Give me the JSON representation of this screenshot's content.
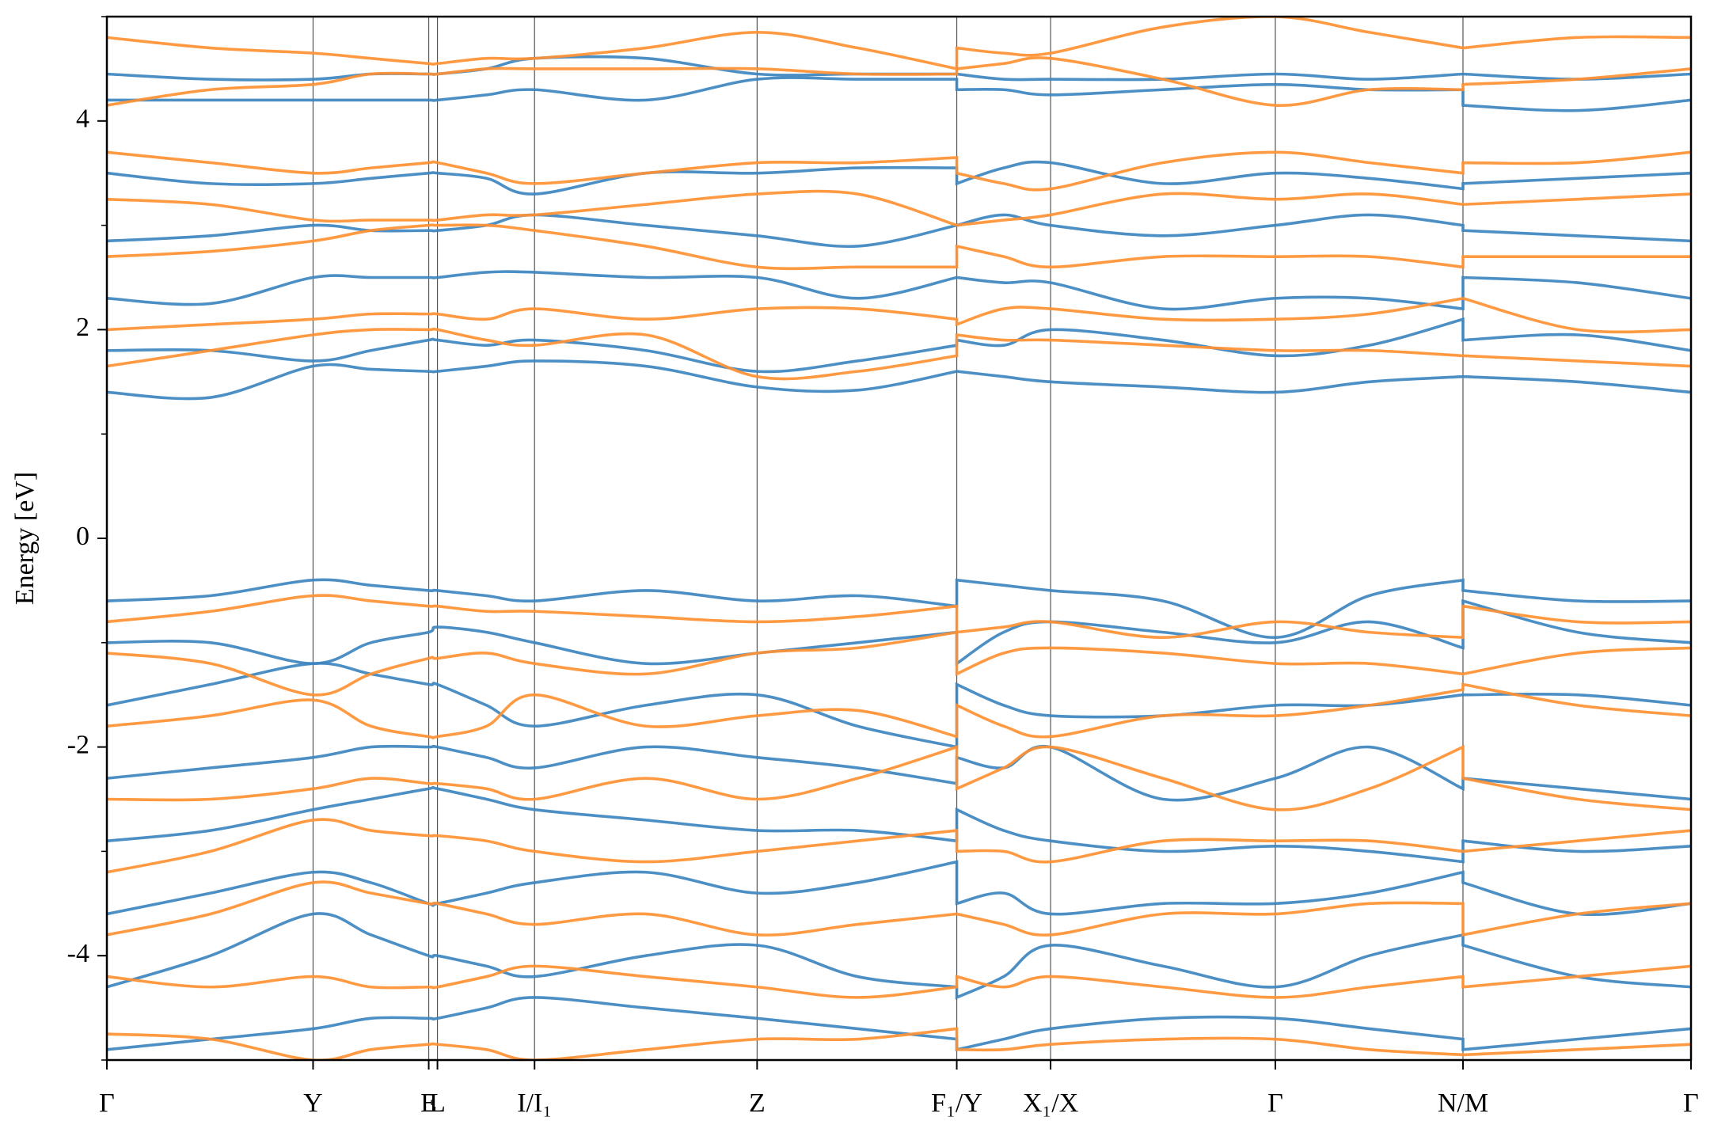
{
  "chart_data": {
    "type": "line",
    "y_label": "Energy [eV]",
    "xlim": [
      0,
      1.452
    ],
    "ylim": [
      -5,
      5
    ],
    "yticks": [
      -4,
      -2,
      0,
      2,
      4
    ],
    "yminorticks": [
      -5,
      -3,
      -1,
      1,
      3,
      5
    ],
    "xticks": [
      {
        "value": 0,
        "label": "Γ"
      },
      {
        "value": 0.189,
        "label": "Y"
      },
      {
        "value": 0.295,
        "label": "E"
      },
      {
        "value": 0.303,
        "label": "L"
      },
      {
        "value": 0.392,
        "label": "I/I₁"
      },
      {
        "value": 0.596,
        "label": "Z"
      },
      {
        "value": 0.779,
        "label": "F₁/Y"
      },
      {
        "value": 0.865,
        "label": "X₁/X"
      },
      {
        "value": 1.071,
        "label": "Γ"
      },
      {
        "value": 1.243,
        "label": "N/M"
      },
      {
        "value": 1.452,
        "label": "Γ"
      }
    ],
    "grid": true,
    "x": [
      0,
      0.095,
      0.189,
      0.242,
      0.295,
      0.303,
      0.348,
      0.392,
      0.494,
      0.596,
      0.688,
      0.779,
      0.779,
      0.822,
      0.865,
      0.968,
      1.071,
      1.157,
      1.243,
      1.243,
      1.348,
      1.452
    ],
    "series": [
      {
        "color": "#3d85c0",
        "values": [
          -0.6,
          -0.55,
          -0.4,
          -0.45,
          -0.5,
          -0.5,
          -0.55,
          -0.6,
          -0.5,
          -0.6,
          -0.55,
          -0.65,
          -0.4,
          -0.45,
          -0.5,
          -0.6,
          -0.95,
          -0.55,
          -0.4,
          -0.5,
          -0.6,
          -0.6
        ]
      },
      {
        "color": "#3d85c0",
        "values": [
          -1.0,
          -1.0,
          -1.2,
          -1.0,
          -0.9,
          -0.85,
          -0.9,
          -1.0,
          -1.2,
          -1.1,
          -1.0,
          -0.9,
          -1.2,
          -0.9,
          -0.8,
          -0.9,
          -1.0,
          -0.8,
          -1.05,
          -0.6,
          -0.9,
          -1.0
        ]
      },
      {
        "color": "#3d85c0",
        "values": [
          -1.6,
          -1.4,
          -1.2,
          -1.3,
          -1.4,
          -1.4,
          -1.6,
          -1.8,
          -1.6,
          -1.5,
          -1.8,
          -2.0,
          -1.4,
          -1.6,
          -1.7,
          -1.7,
          -1.6,
          -1.6,
          -1.5,
          -1.5,
          -1.5,
          -1.6
        ]
      },
      {
        "color": "#3d85c0",
        "values": [
          -2.3,
          -2.2,
          -2.1,
          -2.0,
          -2.0,
          -2.0,
          -2.1,
          -2.2,
          -2.0,
          -2.1,
          -2.2,
          -2.35,
          -2.1,
          -2.2,
          -2.0,
          -2.5,
          -2.3,
          -2.0,
          -2.4,
          -2.3,
          -2.4,
          -2.5
        ]
      },
      {
        "color": "#3d85c0",
        "values": [
          -2.9,
          -2.8,
          -2.6,
          -2.5,
          -2.4,
          -2.4,
          -2.5,
          -2.6,
          -2.7,
          -2.8,
          -2.8,
          -2.9,
          -2.6,
          -2.8,
          -2.9,
          -3.0,
          -2.95,
          -3.0,
          -3.1,
          -2.9,
          -3.0,
          -2.95
        ]
      },
      {
        "color": "#3d85c0",
        "values": [
          -3.6,
          -3.4,
          -3.2,
          -3.3,
          -3.5,
          -3.5,
          -3.4,
          -3.3,
          -3.2,
          -3.4,
          -3.3,
          -3.1,
          -3.5,
          -3.4,
          -3.6,
          -3.5,
          -3.5,
          -3.4,
          -3.2,
          -3.3,
          -3.6,
          -3.5
        ]
      },
      {
        "color": "#3d85c0",
        "values": [
          -4.3,
          -4.0,
          -3.6,
          -3.8,
          -4.0,
          -4.0,
          -4.1,
          -4.2,
          -4.0,
          -3.9,
          -4.2,
          -4.3,
          -4.4,
          -4.2,
          -3.9,
          -4.1,
          -4.3,
          -4.0,
          -3.8,
          -3.9,
          -4.2,
          -4.3
        ]
      },
      {
        "color": "#3d85c0",
        "values": [
          -4.9,
          -4.8,
          -4.7,
          -4.6,
          -4.6,
          -4.6,
          -4.5,
          -4.4,
          -4.5,
          -4.6,
          -4.7,
          -4.8,
          -4.9,
          -4.8,
          -4.7,
          -4.6,
          -4.6,
          -4.7,
          -4.8,
          -4.9,
          -4.8,
          -4.7
        ]
      },
      {
        "color": "#3d85c0",
        "values": [
          1.4,
          1.35,
          1.65,
          1.62,
          1.6,
          1.6,
          1.65,
          1.7,
          1.65,
          1.45,
          1.42,
          1.6,
          1.6,
          1.55,
          1.5,
          1.45,
          1.4,
          1.5,
          1.55,
          1.55,
          1.5,
          1.4
        ]
      },
      {
        "color": "#3d85c0",
        "values": [
          1.8,
          1.8,
          1.7,
          1.8,
          1.9,
          1.9,
          1.85,
          1.9,
          1.8,
          1.6,
          1.7,
          1.85,
          1.9,
          1.85,
          2.0,
          1.9,
          1.75,
          1.85,
          2.1,
          1.9,
          1.95,
          1.8
        ]
      },
      {
        "color": "#3d85c0",
        "values": [
          2.3,
          2.25,
          2.5,
          2.5,
          2.5,
          2.5,
          2.55,
          2.55,
          2.5,
          2.5,
          2.3,
          2.5,
          2.5,
          2.45,
          2.45,
          2.2,
          2.3,
          2.3,
          2.2,
          2.5,
          2.45,
          2.3
        ]
      },
      {
        "color": "#3d85c0",
        "values": [
          2.85,
          2.9,
          3.0,
          2.95,
          2.95,
          2.95,
          3.0,
          3.1,
          3.0,
          2.9,
          2.8,
          3.0,
          3.0,
          3.1,
          3.0,
          2.9,
          3.0,
          3.1,
          3.0,
          2.95,
          2.9,
          2.85
        ]
      },
      {
        "color": "#3d85c0",
        "values": [
          3.5,
          3.4,
          3.4,
          3.45,
          3.5,
          3.5,
          3.45,
          3.3,
          3.5,
          3.5,
          3.55,
          3.55,
          3.4,
          3.55,
          3.6,
          3.4,
          3.5,
          3.45,
          3.35,
          3.4,
          3.45,
          3.5
        ]
      },
      {
        "color": "#3d85c0",
        "values": [
          4.2,
          4.2,
          4.2,
          4.2,
          4.2,
          4.2,
          4.25,
          4.3,
          4.2,
          4.4,
          4.4,
          4.4,
          4.3,
          4.3,
          4.25,
          4.3,
          4.35,
          4.3,
          4.3,
          4.15,
          4.1,
          4.2
        ]
      },
      {
        "color": "#3d85c0",
        "values": [
          4.45,
          4.4,
          4.4,
          4.45,
          4.45,
          4.45,
          4.5,
          4.6,
          4.6,
          4.45,
          4.45,
          4.45,
          4.45,
          4.4,
          4.4,
          4.4,
          4.45,
          4.4,
          4.45,
          4.45,
          4.4,
          4.45
        ]
      },
      {
        "color": "#ff9133",
        "values": [
          -0.8,
          -0.7,
          -0.55,
          -0.6,
          -0.65,
          -0.65,
          -0.7,
          -0.7,
          -0.75,
          -0.8,
          -0.75,
          -0.65,
          -0.9,
          -0.85,
          -0.8,
          -0.95,
          -0.8,
          -0.9,
          -0.95,
          -0.65,
          -0.8,
          -0.8
        ]
      },
      {
        "color": "#ff9133",
        "values": [
          -1.1,
          -1.2,
          -1.5,
          -1.3,
          -1.15,
          -1.15,
          -1.1,
          -1.2,
          -1.3,
          -1.1,
          -1.05,
          -0.9,
          -1.3,
          -1.1,
          -1.05,
          -1.1,
          -1.2,
          -1.2,
          -1.3,
          -1.3,
          -1.1,
          -1.05
        ]
      },
      {
        "color": "#ff9133",
        "values": [
          -1.8,
          -1.7,
          -1.55,
          -1.8,
          -1.9,
          -1.9,
          -1.8,
          -1.5,
          -1.8,
          -1.7,
          -1.65,
          -1.9,
          -1.6,
          -1.8,
          -1.9,
          -1.7,
          -1.7,
          -1.6,
          -1.45,
          -1.4,
          -1.6,
          -1.7
        ]
      },
      {
        "color": "#ff9133",
        "values": [
          -2.5,
          -2.5,
          -2.4,
          -2.3,
          -2.35,
          -2.35,
          -2.4,
          -2.5,
          -2.3,
          -2.5,
          -2.3,
          -2.0,
          -2.4,
          -2.2,
          -2.0,
          -2.3,
          -2.6,
          -2.4,
          -2.0,
          -2.3,
          -2.5,
          -2.6
        ]
      },
      {
        "color": "#ff9133",
        "values": [
          -3.2,
          -3.0,
          -2.7,
          -2.8,
          -2.85,
          -2.85,
          -2.9,
          -3.0,
          -3.1,
          -3.0,
          -2.9,
          -2.8,
          -3.0,
          -3.0,
          -3.1,
          -2.9,
          -2.9,
          -2.9,
          -3.0,
          -3.0,
          -2.9,
          -2.8
        ]
      },
      {
        "color": "#ff9133",
        "values": [
          -3.8,
          -3.6,
          -3.3,
          -3.4,
          -3.5,
          -3.5,
          -3.6,
          -3.7,
          -3.6,
          -3.8,
          -3.7,
          -3.6,
          -3.6,
          -3.7,
          -3.8,
          -3.6,
          -3.6,
          -3.5,
          -3.5,
          -3.8,
          -3.6,
          -3.5
        ]
      },
      {
        "color": "#ff9133",
        "values": [
          -4.2,
          -4.3,
          -4.2,
          -4.3,
          -4.3,
          -4.3,
          -4.2,
          -4.1,
          -4.2,
          -4.3,
          -4.4,
          -4.3,
          -4.2,
          -4.3,
          -4.2,
          -4.3,
          -4.4,
          -4.3,
          -4.2,
          -4.3,
          -4.2,
          -4.1
        ]
      },
      {
        "color": "#ff9133",
        "values": [
          -4.75,
          -4.8,
          -5.0,
          -4.9,
          -4.85,
          -4.85,
          -4.9,
          -5.0,
          -4.9,
          -4.8,
          -4.8,
          -4.7,
          -4.9,
          -4.9,
          -4.85,
          -4.8,
          -4.8,
          -4.9,
          -4.95,
          -4.95,
          -4.9,
          -4.85
        ]
      },
      {
        "color": "#ff9133",
        "values": [
          1.65,
          1.8,
          1.95,
          2.0,
          2.0,
          2.0,
          1.9,
          1.85,
          1.95,
          1.55,
          1.6,
          1.75,
          1.95,
          1.9,
          1.9,
          1.85,
          1.8,
          1.8,
          1.75,
          1.75,
          1.7,
          1.65
        ]
      },
      {
        "color": "#ff9133",
        "values": [
          2.0,
          2.05,
          2.1,
          2.15,
          2.15,
          2.15,
          2.1,
          2.2,
          2.1,
          2.2,
          2.2,
          2.1,
          2.05,
          2.2,
          2.2,
          2.1,
          2.1,
          2.15,
          2.3,
          2.3,
          2.0,
          2.0
        ]
      },
      {
        "color": "#ff9133",
        "values": [
          2.7,
          2.75,
          2.85,
          2.95,
          3.0,
          3.0,
          3.0,
          2.95,
          2.8,
          2.6,
          2.6,
          2.6,
          2.8,
          2.7,
          2.6,
          2.7,
          2.7,
          2.7,
          2.6,
          2.7,
          2.7,
          2.7
        ]
      },
      {
        "color": "#ff9133",
        "values": [
          3.25,
          3.2,
          3.05,
          3.05,
          3.05,
          3.05,
          3.1,
          3.1,
          3.2,
          3.3,
          3.3,
          3.0,
          3.0,
          3.05,
          3.1,
          3.3,
          3.25,
          3.3,
          3.2,
          3.2,
          3.25,
          3.3
        ]
      },
      {
        "color": "#ff9133",
        "values": [
          3.7,
          3.6,
          3.5,
          3.55,
          3.6,
          3.6,
          3.5,
          3.4,
          3.5,
          3.6,
          3.6,
          3.65,
          3.5,
          3.4,
          3.35,
          3.6,
          3.7,
          3.6,
          3.5,
          3.6,
          3.6,
          3.7
        ]
      },
      {
        "color": "#ff9133",
        "values": [
          4.15,
          4.3,
          4.35,
          4.45,
          4.45,
          4.45,
          4.5,
          4.5,
          4.5,
          4.5,
          4.45,
          4.45,
          4.5,
          4.55,
          4.6,
          4.4,
          4.15,
          4.3,
          4.3,
          4.35,
          4.4,
          4.5
        ]
      },
      {
        "color": "#ff9133",
        "values": [
          4.8,
          4.7,
          4.65,
          4.6,
          4.55,
          4.55,
          4.6,
          4.6,
          4.7,
          4.85,
          4.7,
          4.5,
          4.7,
          4.65,
          4.65,
          4.9,
          5.0,
          4.85,
          4.7,
          4.7,
          4.8,
          4.8
        ]
      }
    ]
  }
}
